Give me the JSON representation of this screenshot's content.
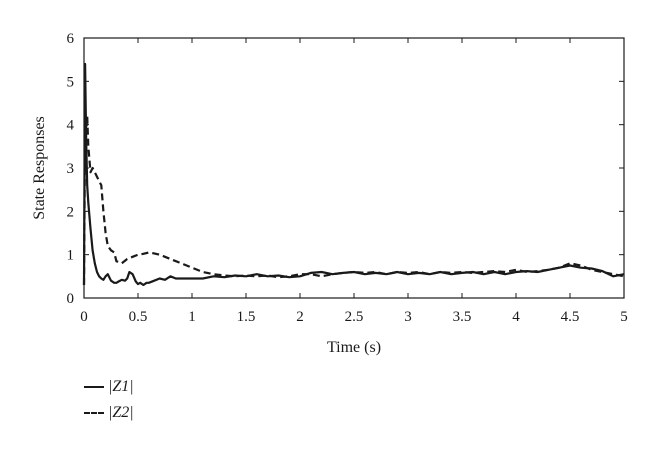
{
  "chart_data": {
    "type": "line",
    "xlabel": "Time (s)",
    "ylabel": "State Responses",
    "xlim": [
      0,
      5
    ],
    "ylim": [
      0,
      6
    ],
    "xticks": [
      "0",
      "0.5",
      "1",
      "1.5",
      "2",
      "2.5",
      "3",
      "3.5",
      "4",
      "4.5",
      "5"
    ],
    "yticks": [
      "0",
      "1",
      "2",
      "3",
      "4",
      "5",
      "6"
    ],
    "grid": false,
    "legend_position": "below-left",
    "series": [
      {
        "name": "|Z1|",
        "style": "solid",
        "color": "#1a1a1a",
        "x": [
          0,
          0.01,
          0.02,
          0.03,
          0.04,
          0.05,
          0.06,
          0.08,
          0.1,
          0.12,
          0.14,
          0.16,
          0.18,
          0.2,
          0.22,
          0.25,
          0.28,
          0.3,
          0.32,
          0.35,
          0.38,
          0.4,
          0.42,
          0.45,
          0.48,
          0.5,
          0.52,
          0.55,
          0.58,
          0.6,
          0.65,
          0.7,
          0.75,
          0.8,
          0.85,
          0.9,
          1.0,
          1.1,
          1.2,
          1.3,
          1.4,
          1.5,
          1.6,
          1.7,
          1.8,
          1.9,
          2.0,
          2.1,
          2.2,
          2.3,
          2.4,
          2.5,
          2.6,
          2.7,
          2.8,
          2.9,
          3.0,
          3.1,
          3.2,
          3.3,
          3.4,
          3.5,
          3.6,
          3.7,
          3.8,
          3.9,
          4.0,
          4.1,
          4.2,
          4.3,
          4.4,
          4.5,
          4.6,
          4.7,
          4.8,
          4.9,
          5.0
        ],
        "values": [
          0.3,
          5.4,
          3.6,
          2.6,
          2.2,
          1.9,
          1.6,
          1.1,
          0.8,
          0.6,
          0.5,
          0.45,
          0.42,
          0.5,
          0.55,
          0.4,
          0.35,
          0.35,
          0.38,
          0.42,
          0.4,
          0.45,
          0.6,
          0.55,
          0.38,
          0.32,
          0.35,
          0.3,
          0.35,
          0.35,
          0.4,
          0.45,
          0.42,
          0.5,
          0.45,
          0.45,
          0.45,
          0.45,
          0.5,
          0.48,
          0.52,
          0.5,
          0.55,
          0.5,
          0.52,
          0.48,
          0.5,
          0.58,
          0.6,
          0.55,
          0.58,
          0.6,
          0.55,
          0.58,
          0.55,
          0.6,
          0.55,
          0.58,
          0.55,
          0.6,
          0.55,
          0.58,
          0.6,
          0.55,
          0.6,
          0.55,
          0.6,
          0.62,
          0.6,
          0.65,
          0.7,
          0.75,
          0.7,
          0.68,
          0.62,
          0.5,
          0.55
        ]
      },
      {
        "name": "|Z2|",
        "style": "dashed",
        "color": "#1a1a1a",
        "x": [
          0,
          0.01,
          0.02,
          0.03,
          0.04,
          0.05,
          0.06,
          0.08,
          0.1,
          0.12,
          0.14,
          0.16,
          0.18,
          0.2,
          0.22,
          0.25,
          0.28,
          0.3,
          0.35,
          0.4,
          0.45,
          0.5,
          0.55,
          0.6,
          0.65,
          0.7,
          0.75,
          0.8,
          0.9,
          1.0,
          1.1,
          1.2,
          1.3,
          1.4,
          1.5,
          1.6,
          1.7,
          1.8,
          1.9,
          2.0,
          2.1,
          2.2,
          2.3,
          2.4,
          2.5,
          2.6,
          2.7,
          2.8,
          2.9,
          3.0,
          3.1,
          3.2,
          3.3,
          3.4,
          3.5,
          3.6,
          3.7,
          3.8,
          3.9,
          4.0,
          4.1,
          4.2,
          4.3,
          4.4,
          4.5,
          4.6,
          4.7,
          4.8,
          4.9,
          5.0
        ],
        "values": [
          0.3,
          4.0,
          3.8,
          4.2,
          3.5,
          3.2,
          2.9,
          3.0,
          2.9,
          2.8,
          2.7,
          2.6,
          2.0,
          1.5,
          1.2,
          1.1,
          1.05,
          0.85,
          0.8,
          0.9,
          0.95,
          1.0,
          1.02,
          1.05,
          1.03,
          1.0,
          0.95,
          0.9,
          0.8,
          0.7,
          0.6,
          0.55,
          0.52,
          0.5,
          0.52,
          0.5,
          0.52,
          0.48,
          0.5,
          0.55,
          0.55,
          0.5,
          0.55,
          0.58,
          0.6,
          0.58,
          0.6,
          0.55,
          0.6,
          0.58,
          0.6,
          0.55,
          0.6,
          0.58,
          0.6,
          0.58,
          0.6,
          0.62,
          0.6,
          0.65,
          0.6,
          0.62,
          0.65,
          0.7,
          0.8,
          0.75,
          0.65,
          0.6,
          0.55,
          0.5
        ]
      }
    ]
  },
  "legend": {
    "z1_label": "|Z1|",
    "z2_label": "|Z2|"
  }
}
